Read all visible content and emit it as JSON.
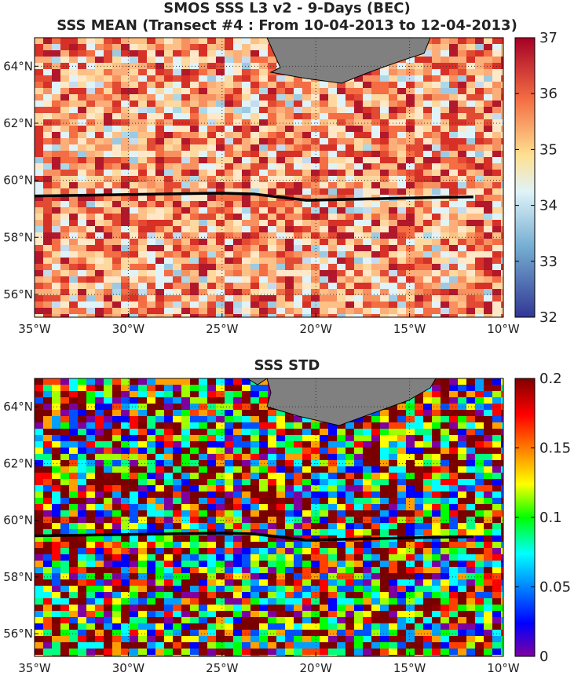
{
  "titles": {
    "line1": "SMOS SSS L3 v2 - 9-Days (BEC)",
    "line2": "SSS MEAN (Transect #4 : From 10-04-2013 to 12-04-2013)",
    "line3": "SSS STD"
  },
  "axes": {
    "lon_ticks": [
      "35°W",
      "30°W",
      "25°W",
      "20°W",
      "15°W",
      "10°W"
    ],
    "lon_values": [
      -35,
      -30,
      -25,
      -20,
      -15,
      -10
    ],
    "lat_ticks": [
      "64°N",
      "62°N",
      "60°N",
      "58°N",
      "56°N"
    ],
    "lat_values": [
      64,
      62,
      60,
      58,
      56
    ],
    "lon_range": [
      -35,
      -10
    ],
    "lat_range": [
      55.2,
      65
    ],
    "grid": "dotted"
  },
  "colorbars": {
    "mean": {
      "ticks": [
        "37",
        "36",
        "35",
        "34",
        "33",
        "32"
      ],
      "values": [
        37,
        36,
        35,
        34,
        33,
        32
      ],
      "range": [
        32,
        37
      ],
      "colormap": "red-yellow-blue (diverging)"
    },
    "std": {
      "ticks": [
        "0.2",
        "0.15",
        "0.1",
        "0.05",
        "0"
      ],
      "values": [
        0.2,
        0.15,
        0.1,
        0.05,
        0
      ],
      "range": [
        0,
        0.2
      ],
      "colormap": "jet"
    }
  },
  "land_color": "#808080",
  "transect": {
    "lon": [
      -35,
      -30,
      -25,
      -23.3,
      -20.5,
      -17,
      -13.5,
      -11.6
    ],
    "lat": [
      59.45,
      59.5,
      59.55,
      59.52,
      59.3,
      59.35,
      59.4,
      59.42
    ]
  }
}
